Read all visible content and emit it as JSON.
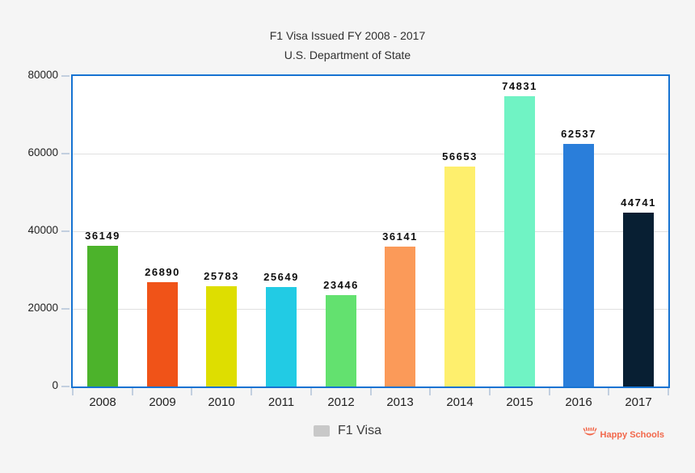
{
  "chart_data": {
    "type": "bar",
    "title": "F1 Visa Issued FY 2008 - 2017",
    "subtitle": "U.S. Department of State",
    "categories": [
      "2008",
      "2009",
      "2010",
      "2011",
      "2012",
      "2013",
      "2014",
      "2015",
      "2016",
      "2017"
    ],
    "values": [
      36149,
      26890,
      25783,
      25649,
      23446,
      36141,
      56653,
      74831,
      62537,
      44741
    ],
    "bar_colors": [
      "#4cb32b",
      "#f05318",
      "#dede00",
      "#22cbe4",
      "#63e16f",
      "#fb9a59",
      "#feef6d",
      "#70f3c4",
      "#2a7eda",
      "#081f33"
    ],
    "xlabel": "",
    "ylabel": "",
    "ylim": [
      0,
      80000
    ],
    "yticks": [
      0,
      20000,
      40000,
      60000,
      80000
    ],
    "grid": true,
    "legend": [
      {
        "label": "F1 Visa",
        "swatch_color": "#c8c8c8"
      }
    ],
    "legend_position": "bottom-center"
  },
  "styles": {
    "page_bg": "#f5f5f5",
    "plot_bg": "#ffffff",
    "plot_border_color": "#1673d2",
    "grid_color": "#e0e0e0",
    "tick_color": "#c2cfdf",
    "axis_label_color": "#222222",
    "value_label_color": "#0d0d0d"
  },
  "branding": {
    "name": "Happy Schools",
    "color": "#f2674a",
    "icon": "happy-schools-smiley-icon"
  }
}
